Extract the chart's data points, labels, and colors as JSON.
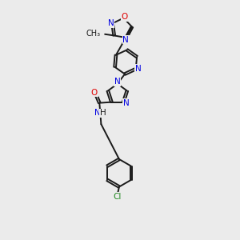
{
  "background_color": "#ebebeb",
  "bond_color": "#1a1a1a",
  "atom_colors": {
    "N": "#0000e0",
    "O": "#e00000",
    "Cl": "#228822",
    "C": "#1a1a1a"
  },
  "figsize": [
    3.0,
    3.0
  ],
  "dpi": 100
}
